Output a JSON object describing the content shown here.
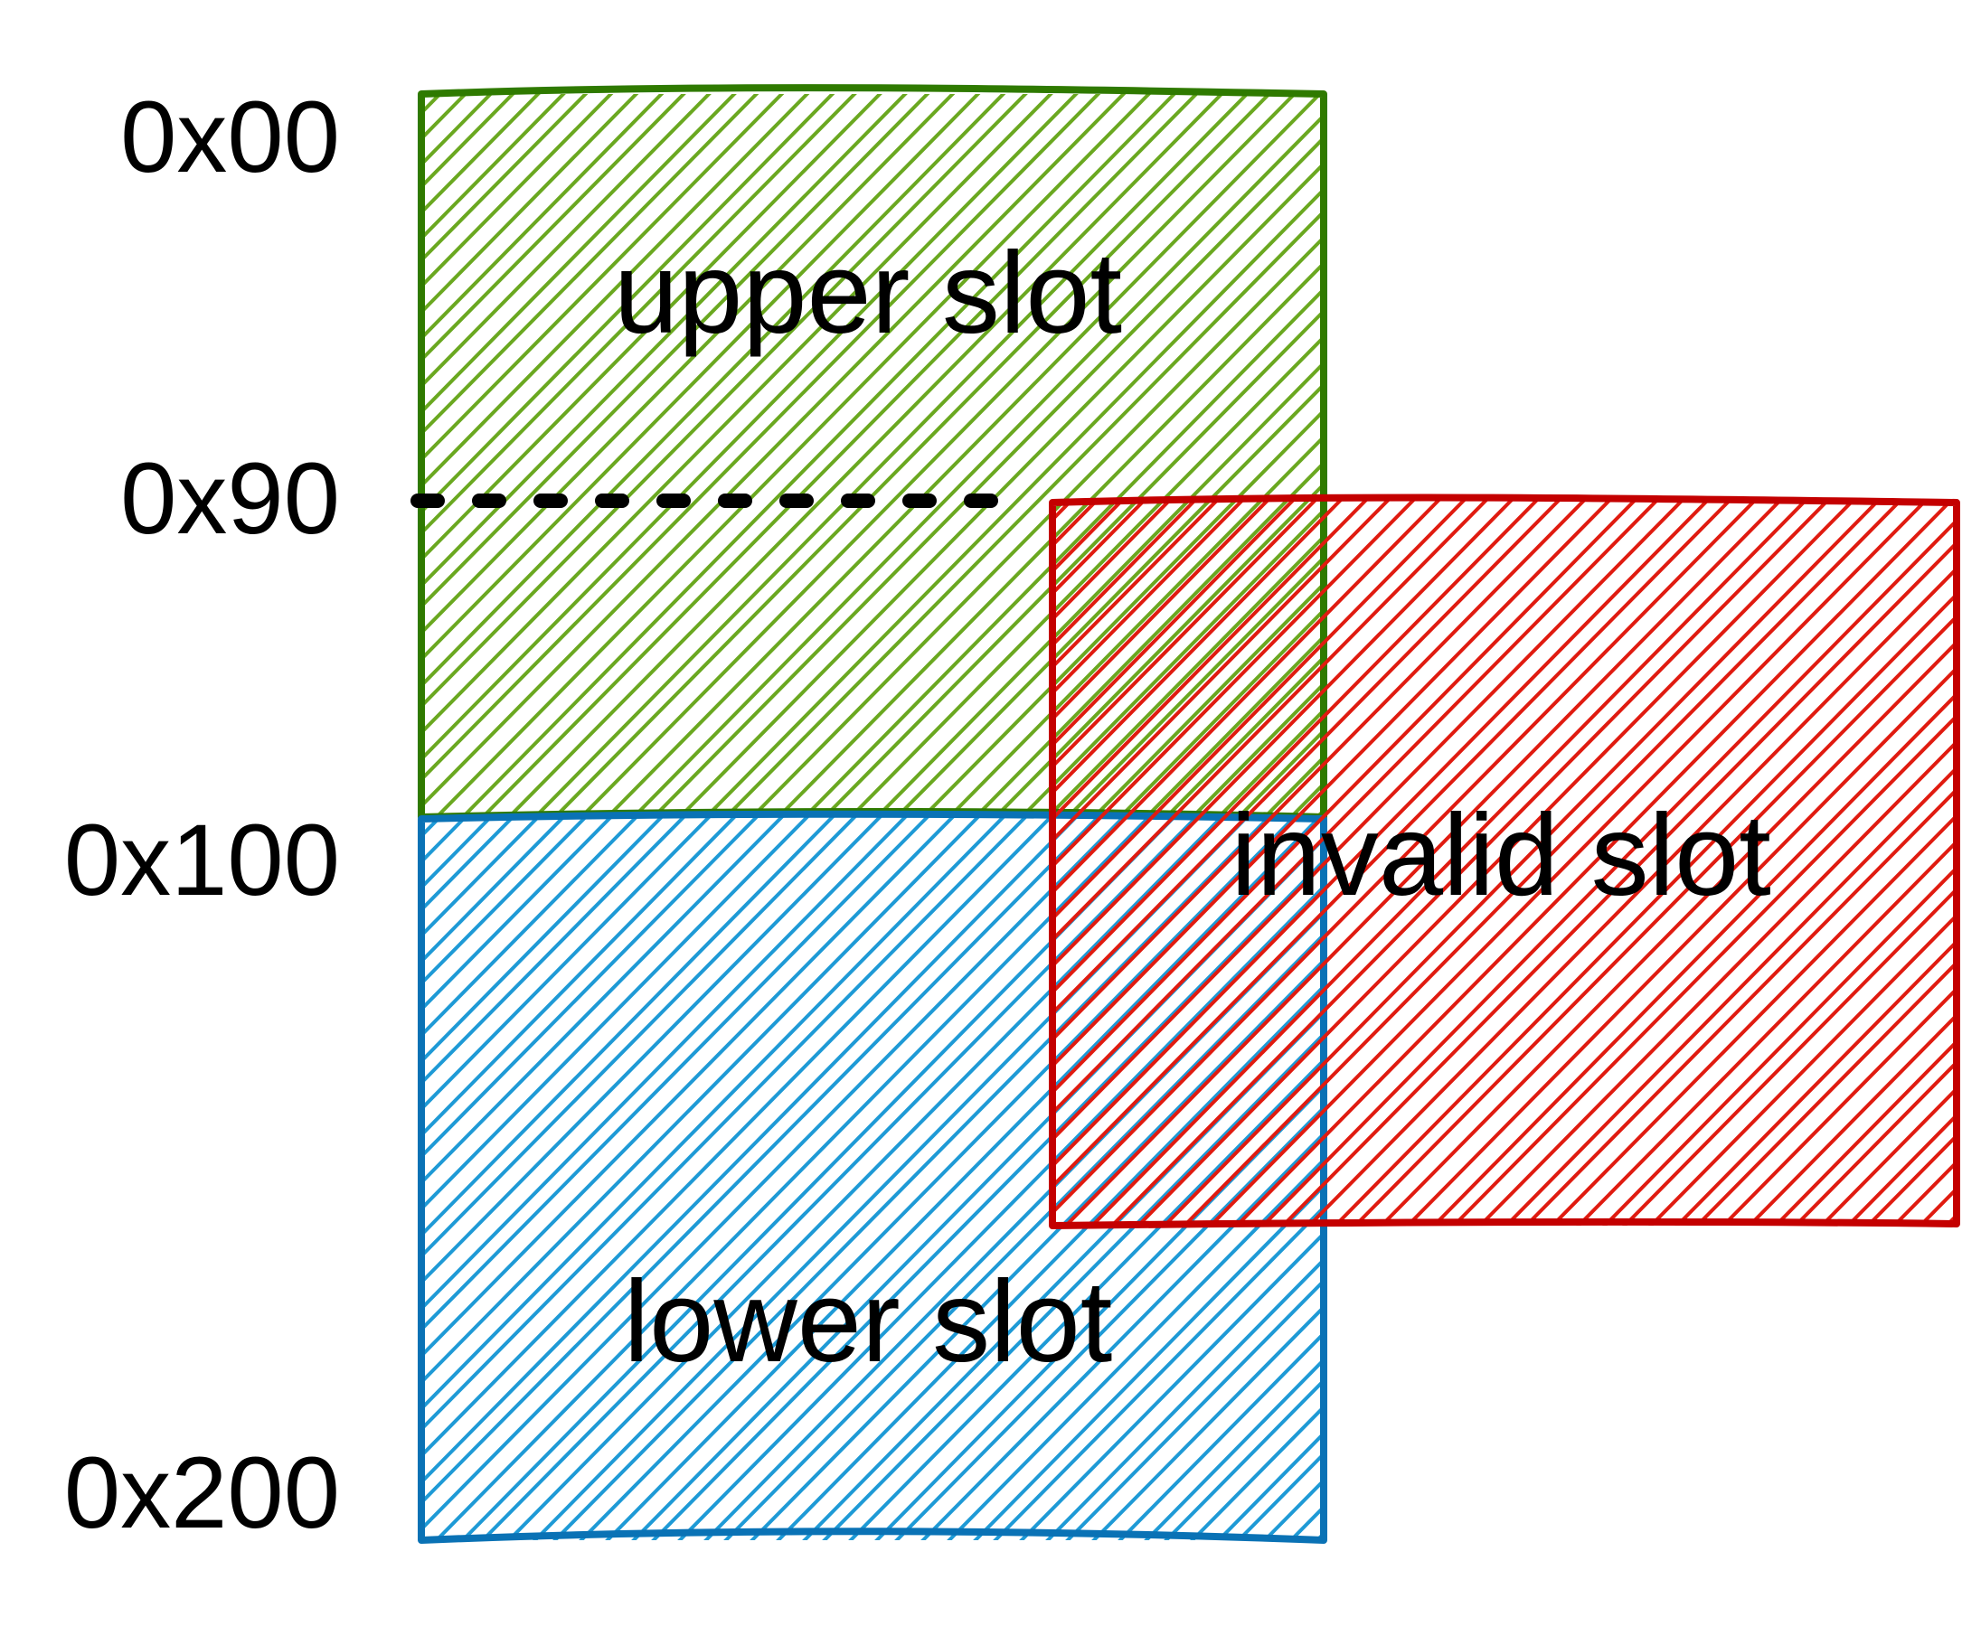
{
  "diagram": {
    "addresses": [
      "0x00",
      "0x90",
      "0x100",
      "0x200"
    ],
    "slots": {
      "upper": {
        "label": "upper slot",
        "fill_color": "#6aa820",
        "stroke_color": "#2f7a00"
      },
      "lower": {
        "label": "lower slot",
        "fill_color": "#1e9ad6",
        "stroke_color": "#0a72b5"
      },
      "invalid": {
        "label": "invalid slot",
        "fill_color": "#e01b10",
        "stroke_color": "#c40000"
      }
    },
    "divider_color": "#000000"
  }
}
